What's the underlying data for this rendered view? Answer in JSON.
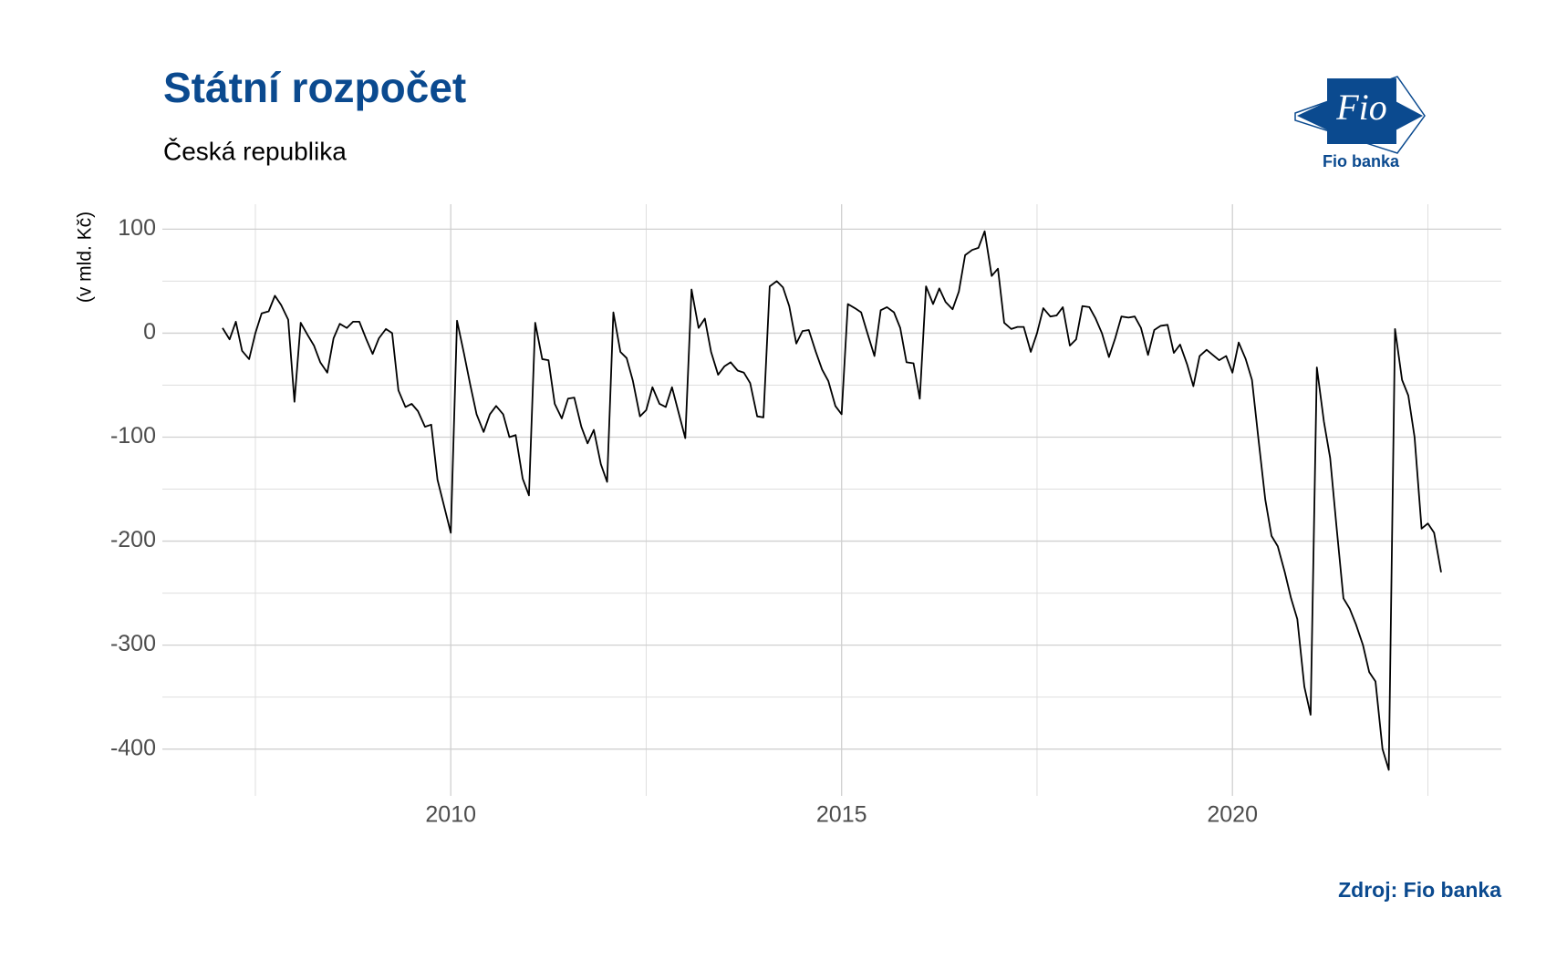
{
  "chart_data": {
    "type": "line",
    "title": "Státní rozpočet",
    "subtitle": "Česká republika",
    "y_label": "(v mld. Kč)",
    "source": "Zdroj: Fio banka",
    "logo": {
      "mark": "Fio",
      "name": "Fio banka"
    },
    "xlim": [
      2006.31,
      2023.44
    ],
    "xticks": [
      2010,
      2015,
      2020
    ],
    "x_minor_ticks": [
      2007.5,
      2012.5,
      2017.5,
      2022.5
    ],
    "ylim": [
      -445,
      124
    ],
    "yticks": [
      -400,
      -300,
      -200,
      -100,
      0,
      100
    ],
    "y_minor_ticks": [
      -350,
      -250,
      -150,
      -50,
      50
    ],
    "grid": true,
    "x": [
      2007.08,
      2007.17,
      2007.25,
      2007.33,
      2007.42,
      2007.5,
      2007.58,
      2007.67,
      2007.75,
      2007.83,
      2007.92,
      2008.0,
      2008.08,
      2008.17,
      2008.25,
      2008.33,
      2008.42,
      2008.5,
      2008.58,
      2008.67,
      2008.75,
      2008.83,
      2008.92,
      2009.0,
      2009.08,
      2009.17,
      2009.25,
      2009.33,
      2009.42,
      2009.5,
      2009.58,
      2009.67,
      2009.75,
      2009.83,
      2009.92,
      2010.0,
      2010.08,
      2010.17,
      2010.25,
      2010.33,
      2010.42,
      2010.5,
      2010.58,
      2010.67,
      2010.75,
      2010.83,
      2010.92,
      2011.0,
      2011.08,
      2011.17,
      2011.25,
      2011.33,
      2011.42,
      2011.5,
      2011.58,
      2011.67,
      2011.75,
      2011.83,
      2011.92,
      2012.0,
      2012.08,
      2012.17,
      2012.25,
      2012.33,
      2012.42,
      2012.5,
      2012.58,
      2012.67,
      2012.75,
      2012.83,
      2012.92,
      2013.0,
      2013.08,
      2013.17,
      2013.25,
      2013.33,
      2013.42,
      2013.5,
      2013.58,
      2013.67,
      2013.75,
      2013.83,
      2013.92,
      2014.0,
      2014.08,
      2014.17,
      2014.25,
      2014.33,
      2014.42,
      2014.5,
      2014.58,
      2014.67,
      2014.75,
      2014.83,
      2014.92,
      2015.0,
      2015.08,
      2015.17,
      2015.25,
      2015.33,
      2015.42,
      2015.5,
      2015.58,
      2015.67,
      2015.75,
      2015.83,
      2015.92,
      2016.0,
      2016.08,
      2016.17,
      2016.25,
      2016.33,
      2016.42,
      2016.5,
      2016.58,
      2016.67,
      2016.75,
      2016.83,
      2016.92,
      2017.0,
      2017.08,
      2017.17,
      2017.25,
      2017.33,
      2017.42,
      2017.5,
      2017.58,
      2017.67,
      2017.75,
      2017.83,
      2017.92,
      2018.0,
      2018.08,
      2018.17,
      2018.25,
      2018.33,
      2018.42,
      2018.5,
      2018.58,
      2018.67,
      2018.75,
      2018.83,
      2018.92,
      2019.0,
      2019.08,
      2019.17,
      2019.25,
      2019.33,
      2019.42,
      2019.5,
      2019.58,
      2019.67,
      2019.75,
      2019.83,
      2019.92,
      2020.0,
      2020.08,
      2020.17,
      2020.25,
      2020.33,
      2020.42,
      2020.5,
      2020.58,
      2020.67,
      2020.75,
      2020.83,
      2020.92,
      2021.0,
      2021.08,
      2021.17,
      2021.25,
      2021.33,
      2021.42,
      2021.5,
      2021.58,
      2021.67,
      2021.75,
      2021.83,
      2021.92,
      2022.0,
      2022.08,
      2022.17,
      2022.25,
      2022.33,
      2022.42,
      2022.5,
      2022.58,
      2022.67
    ],
    "series": [
      {
        "color": "#000000",
        "values": [
          5,
          -6,
          11,
          -17,
          -25,
          0,
          19,
          21,
          36,
          27,
          13,
          -66,
          10,
          -2,
          -12,
          -28,
          -38,
          -5,
          9,
          5,
          11,
          11,
          -6,
          -20,
          -5,
          4,
          0,
          -55,
          -71,
          -68,
          -75,
          -90,
          -88,
          -141,
          -168,
          -192,
          12,
          -20,
          -50,
          -78,
          -95,
          -78,
          -70,
          -78,
          -100,
          -98,
          -140,
          -156,
          10,
          -25,
          -26,
          -68,
          -82,
          -63,
          -62,
          -90,
          -106,
          -93,
          -126,
          -143,
          20,
          -18,
          -24,
          -46,
          -80,
          -74,
          -52,
          -68,
          -71,
          -52,
          -78,
          -101,
          42,
          5,
          14,
          -18,
          -40,
          -32,
          -28,
          -36,
          -38,
          -48,
          -80,
          -81,
          45,
          50,
          44,
          26,
          -10,
          2,
          3,
          -18,
          -35,
          -46,
          -70,
          -78,
          28,
          24,
          20,
          0,
          -22,
          22,
          25,
          20,
          5,
          -28,
          -29,
          -63,
          45,
          28,
          43,
          30,
          23,
          40,
          75,
          80,
          82,
          98,
          55,
          62,
          10,
          4,
          6,
          6,
          -18,
          0,
          24,
          16,
          17,
          25,
          -12,
          -6,
          26,
          25,
          14,
          0,
          -23,
          -5,
          16,
          15,
          16,
          5,
          -21,
          3,
          7,
          8,
          -19,
          -11,
          -30,
          -51,
          -22,
          -16,
          -21,
          -26,
          -22,
          -38,
          -9,
          -25,
          -45,
          -100,
          -160,
          -195,
          -205,
          -230,
          -255,
          -275,
          -340,
          -367,
          -33,
          -85,
          -120,
          -185,
          -255,
          -265,
          -280,
          -300,
          -326,
          -335,
          -400,
          -420,
          4,
          -45,
          -60,
          -100,
          -188,
          -183,
          -192,
          -230
        ]
      }
    ]
  }
}
